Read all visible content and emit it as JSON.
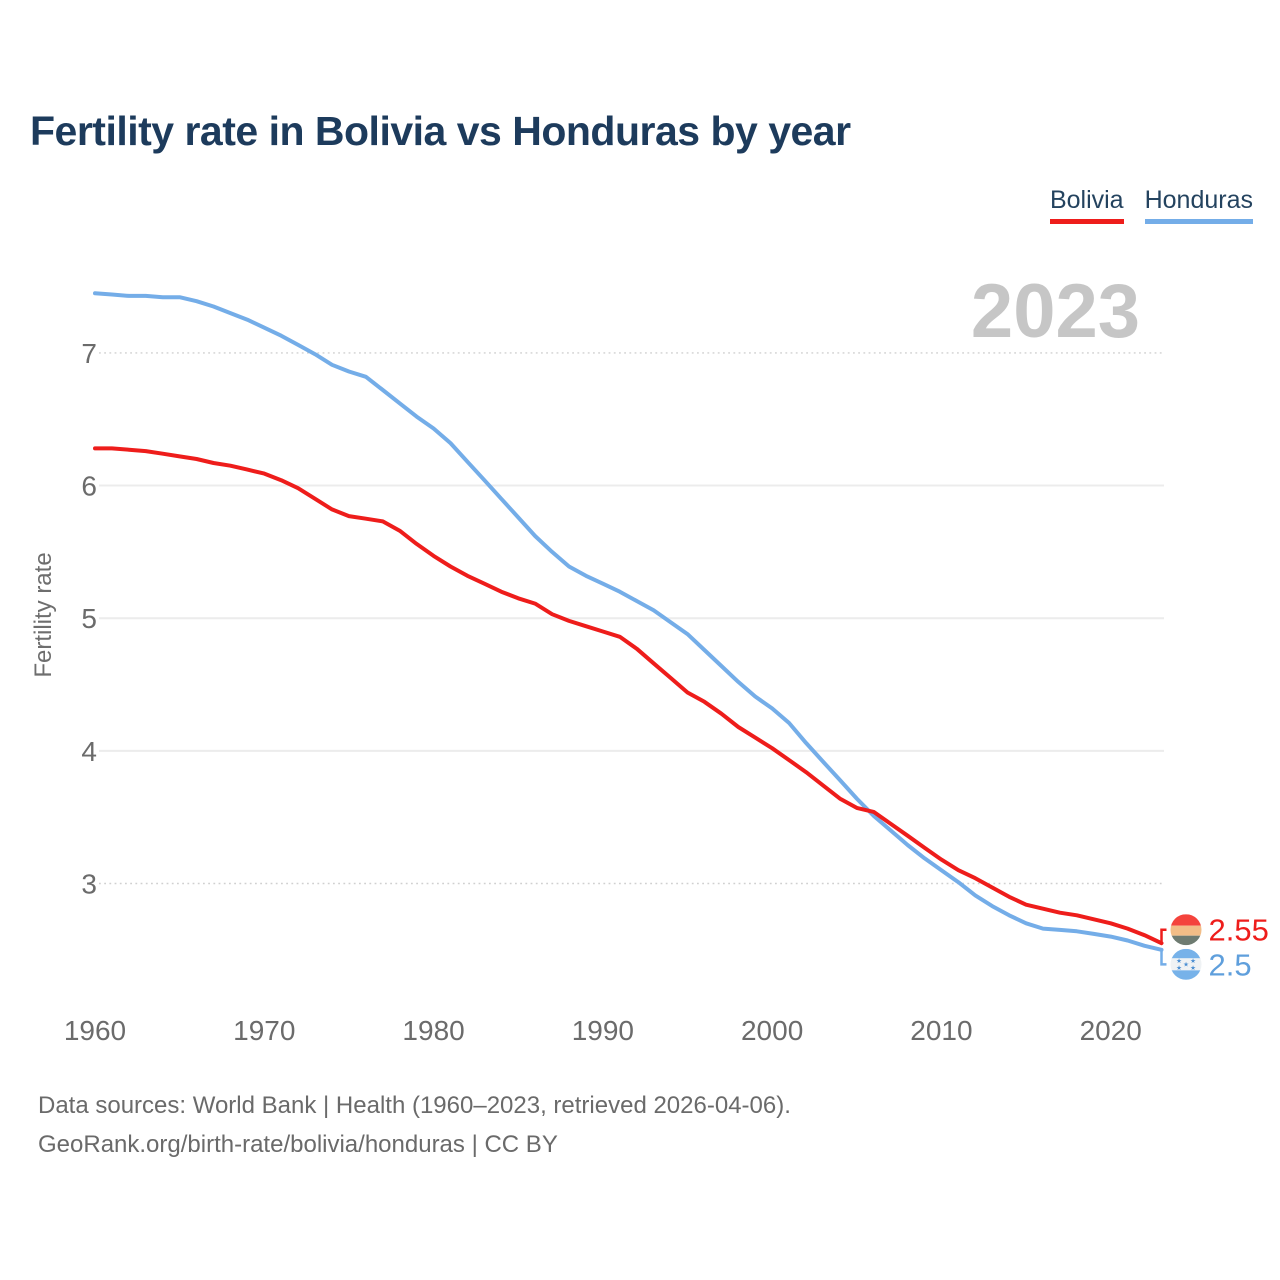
{
  "header": {
    "title": "Fertility rate in Bolivia vs Honduras by year"
  },
  "legend": {
    "items": [
      {
        "label": "Bolivia",
        "color": "#ee1d1b"
      },
      {
        "label": "Honduras",
        "color": "#74ade8"
      }
    ]
  },
  "chart": {
    "watermark": "2023",
    "ylabel": "Fertility rate"
  },
  "footer": {
    "line1": "Data sources: World Bank | Health (1960–2023, retrieved 2026-04-06).",
    "line2": "GeoRank.org/birth-rate/bolivia/honduras | CC BY"
  },
  "chart_data": {
    "type": "line",
    "title": "Fertility rate in Bolivia vs Honduras by year",
    "xlabel": "",
    "ylabel": "Fertility rate",
    "x_ticks": [
      1960,
      1970,
      1980,
      1990,
      2000,
      2010,
      2020
    ],
    "y_ticks": [
      3,
      4,
      5,
      6,
      7
    ],
    "xlim": [
      1960,
      2023
    ],
    "ylim": [
      2.4,
      7.6
    ],
    "grid": "horizontal",
    "legend_position": "top-right",
    "watermark": "2023",
    "x": [
      1960,
      1961,
      1962,
      1963,
      1964,
      1965,
      1966,
      1967,
      1968,
      1969,
      1970,
      1971,
      1972,
      1973,
      1974,
      1975,
      1976,
      1977,
      1978,
      1979,
      1980,
      1981,
      1982,
      1983,
      1984,
      1985,
      1986,
      1987,
      1988,
      1989,
      1990,
      1991,
      1992,
      1993,
      1994,
      1995,
      1996,
      1997,
      1998,
      1999,
      2000,
      2001,
      2002,
      2003,
      2004,
      2005,
      2006,
      2007,
      2008,
      2009,
      2010,
      2011,
      2012,
      2013,
      2014,
      2015,
      2016,
      2017,
      2018,
      2019,
      2020,
      2021,
      2022,
      2023
    ],
    "series": [
      {
        "name": "Bolivia",
        "color": "#ee1d1b",
        "label_color": "#ee1d1b",
        "end_label": "2.55",
        "end_value": 2.55,
        "flag_icon": "bolivia-flag-icon",
        "flag_colors": [
          "#f4433c",
          "#f2bd87",
          "#6e7b71"
        ],
        "values": [
          6.28,
          6.28,
          6.27,
          6.26,
          6.24,
          6.22,
          6.2,
          6.17,
          6.15,
          6.12,
          6.09,
          6.04,
          5.98,
          5.9,
          5.82,
          5.77,
          5.75,
          5.73,
          5.66,
          5.56,
          5.47,
          5.39,
          5.32,
          5.26,
          5.2,
          5.15,
          5.11,
          5.03,
          4.98,
          4.94,
          4.9,
          4.86,
          4.77,
          4.66,
          4.55,
          4.44,
          4.37,
          4.28,
          4.18,
          4.1,
          4.02,
          3.93,
          3.84,
          3.74,
          3.64,
          3.57,
          3.54,
          3.45,
          3.36,
          3.27,
          3.18,
          3.1,
          3.04,
          2.97,
          2.9,
          2.84,
          2.81,
          2.78,
          2.76,
          2.73,
          2.7,
          2.66,
          2.61,
          2.55
        ]
      },
      {
        "name": "Honduras",
        "color": "#74ade8",
        "label_color": "#5f9fdc",
        "end_label": "2.5",
        "end_value": 2.5,
        "flag_icon": "honduras-flag-icon",
        "flag_colors": [
          "#77b2e9",
          "#eff2f4",
          "#77b2e9"
        ],
        "flag_star_color": "#4a8ed2",
        "values": [
          7.45,
          7.44,
          7.43,
          7.43,
          7.42,
          7.42,
          7.39,
          7.35,
          7.3,
          7.25,
          7.19,
          7.13,
          7.06,
          6.99,
          6.91,
          6.86,
          6.82,
          6.72,
          6.62,
          6.52,
          6.43,
          6.32,
          6.18,
          6.04,
          5.9,
          5.76,
          5.62,
          5.5,
          5.39,
          5.32,
          5.26,
          5.2,
          5.13,
          5.06,
          4.97,
          4.88,
          4.76,
          4.64,
          4.52,
          4.41,
          4.32,
          4.21,
          4.06,
          3.92,
          3.78,
          3.64,
          3.51,
          3.4,
          3.29,
          3.19,
          3.1,
          3.01,
          2.91,
          2.83,
          2.76,
          2.7,
          2.66,
          2.65,
          2.64,
          2.62,
          2.6,
          2.57,
          2.53,
          2.5
        ]
      }
    ]
  }
}
